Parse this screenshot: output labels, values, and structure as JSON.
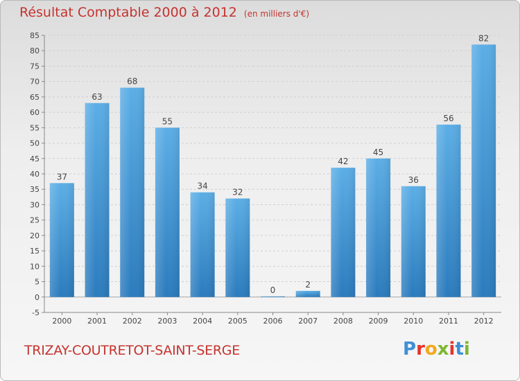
{
  "header": {
    "title": "Résultat Comptable 2000 à 2012",
    "unit": "(en milliers d'€)"
  },
  "footer": {
    "commune": "TRIZAY-COUTRETOT-SAINT-SERGE",
    "logo": "Proxiti"
  },
  "colors": {
    "bar_top": "#5caee6",
    "bar_bottom": "#2b7bbd",
    "title": "#c4332e",
    "logo_letters": [
      "#3f8fd6",
      "#e6332a",
      "#f2a81d",
      "#7cb82f",
      "#e6332a",
      "#3f8fd6",
      "#7cb82f"
    ]
  },
  "chart_data": {
    "type": "bar",
    "categories": [
      "2000",
      "2001",
      "2002",
      "2003",
      "2004",
      "2005",
      "2006",
      "2007",
      "2008",
      "2009",
      "2010",
      "2011",
      "2012"
    ],
    "values": [
      37,
      63,
      68,
      55,
      34,
      32,
      0,
      2,
      42,
      45,
      36,
      56,
      82
    ],
    "ylim": [
      -5,
      85
    ],
    "yticks": [
      -5,
      0,
      5,
      10,
      15,
      20,
      25,
      30,
      35,
      40,
      45,
      50,
      55,
      60,
      65,
      70,
      75,
      80,
      85
    ],
    "grid": true,
    "legend": "none"
  }
}
